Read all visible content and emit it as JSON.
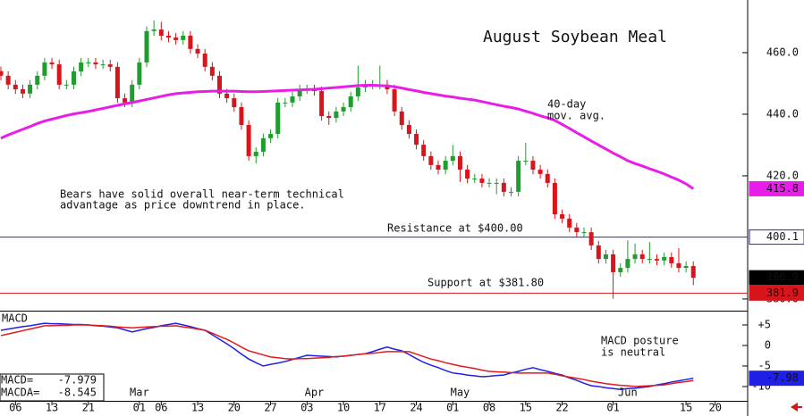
{
  "chart_data": [
    {
      "type": "candlestick",
      "title": "August Soybean Meal",
      "ylim": [
        376.5,
        477.1
      ],
      "yticks": [
        {
          "value": 460,
          "label": "460.0"
        },
        {
          "value": 440,
          "label": "440.0"
        },
        {
          "value": 420,
          "label": "420.0"
        },
        {
          "value": 380,
          "label": "380.0"
        }
      ],
      "up_color": "#1e9e2e",
      "down_color": "#d8151b",
      "last_price_color": "#000000",
      "open": [
        454.0,
        452.5,
        449.6,
        448.1,
        446.7,
        449.6,
        452.5,
        456.8,
        456.2,
        449.6,
        449.6,
        453.9,
        456.8,
        456.8,
        456.2,
        456.2,
        455.4,
        445.2,
        443.8,
        449.6,
        456.8,
        467.0,
        467.5,
        465.5,
        464.9,
        464.1,
        465.5,
        461.2,
        459.7,
        455.4,
        452.5,
        446.7,
        445.2,
        442.3,
        436.5,
        426.4,
        427.8,
        432.2,
        433.6,
        443.8,
        443.8,
        445.8,
        448.1,
        448.1,
        447.5,
        439.4,
        438.8,
        440.9,
        442.3,
        445.8,
        448.7,
        449.6,
        449.6,
        449.6,
        448.1,
        440.9,
        436.5,
        433.6,
        430.1,
        426.4,
        423.5,
        422.0,
        424.9,
        426.4,
        422.0,
        419.1,
        419.1,
        417.7,
        417.7,
        417.7,
        414.8,
        414.8,
        424.9,
        424.9,
        422.0,
        420.6,
        417.7,
        407.5,
        406.1,
        403.2,
        401.7,
        401.7,
        397.4,
        393.0,
        394.5,
        388.7,
        390.1,
        393.0,
        394.5,
        393.0,
        393.0,
        392.5,
        393.6,
        391.6,
        390.1,
        390.7,
        null,
        null,
        null,
        null,
        null
      ],
      "high": [
        455.5,
        454.0,
        451.1,
        449.6,
        451.1,
        454.0,
        458.3,
        458.3,
        457.7,
        451.1,
        455.4,
        458.3,
        458.3,
        458.3,
        457.7,
        457.7,
        456.9,
        446.7,
        451.1,
        458.3,
        468.5,
        470.5,
        470.0,
        467.0,
        466.4,
        467.0,
        467.0,
        462.7,
        461.2,
        456.9,
        454.0,
        448.2,
        446.7,
        443.8,
        438.0,
        429.3,
        433.7,
        435.1,
        445.3,
        445.3,
        447.3,
        449.6,
        449.6,
        449.6,
        449.0,
        440.9,
        442.4,
        443.8,
        447.3,
        455.8,
        451.1,
        451.1,
        455.8,
        451.1,
        449.6,
        442.4,
        438.0,
        435.1,
        431.6,
        427.9,
        425.0,
        426.4,
        430.0,
        427.9,
        423.5,
        420.6,
        420.6,
        419.2,
        419.2,
        419.2,
        416.3,
        426.4,
        430.7,
        426.4,
        423.5,
        422.1,
        419.2,
        409.0,
        407.6,
        404.7,
        403.2,
        403.2,
        398.9,
        396.0,
        396.0,
        391.6,
        399.1,
        398.0,
        396.0,
        398.5,
        394.5,
        395.1,
        395.1,
        396.5,
        392.2,
        392.2,
        null,
        null,
        null,
        null,
        null
      ],
      "low": [
        451.0,
        448.1,
        446.6,
        445.2,
        445.2,
        448.1,
        451.0,
        454.7,
        448.1,
        448.1,
        448.1,
        452.4,
        455.3,
        454.7,
        454.7,
        453.9,
        443.7,
        442.3,
        442.3,
        448.1,
        455.3,
        465.5,
        464.0,
        463.4,
        462.6,
        462.6,
        459.7,
        458.2,
        453.9,
        451.0,
        445.2,
        443.7,
        440.8,
        435.0,
        424.9,
        424.0,
        426.3,
        430.7,
        432.1,
        442.3,
        442.3,
        444.3,
        446.6,
        446.0,
        437.9,
        436.5,
        437.3,
        439.4,
        440.8,
        444.3,
        447.2,
        448.1,
        448.1,
        446.6,
        439.4,
        435.0,
        432.1,
        428.6,
        424.9,
        422.0,
        420.5,
        420.5,
        423.4,
        418.0,
        417.6,
        417.6,
        416.2,
        416.2,
        414.0,
        413.3,
        413.3,
        413.3,
        423.4,
        420.5,
        419.1,
        416.2,
        406.0,
        404.6,
        401.7,
        400.2,
        400.2,
        395.9,
        391.5,
        391.5,
        380.1,
        387.2,
        388.6,
        391.5,
        391.5,
        391.5,
        391.0,
        391.0,
        390.1,
        388.6,
        388.6,
        384.5,
        null,
        null,
        null,
        null,
        null
      ],
      "close": [
        452.5,
        449.6,
        448.1,
        446.7,
        449.6,
        452.5,
        456.8,
        456.2,
        449.6,
        449.6,
        453.9,
        456.8,
        456.8,
        456.2,
        456.2,
        455.4,
        445.2,
        443.8,
        449.6,
        456.8,
        467.0,
        467.5,
        465.5,
        464.9,
        464.1,
        465.5,
        461.2,
        459.7,
        455.4,
        452.5,
        446.7,
        445.2,
        442.3,
        436.5,
        426.4,
        427.8,
        432.2,
        433.6,
        443.8,
        443.8,
        445.8,
        448.1,
        448.1,
        447.5,
        439.4,
        438.8,
        440.9,
        442.3,
        445.8,
        448.7,
        449.6,
        449.6,
        449.6,
        448.1,
        440.9,
        436.5,
        433.6,
        430.1,
        426.4,
        423.5,
        422.0,
        424.9,
        426.4,
        422.0,
        419.1,
        419.1,
        417.7,
        417.7,
        417.7,
        414.8,
        414.8,
        424.9,
        424.9,
        422.0,
        420.6,
        417.7,
        407.5,
        406.1,
        403.2,
        401.7,
        401.7,
        397.4,
        393.0,
        394.5,
        388.7,
        390.1,
        393.0,
        394.5,
        393.0,
        393.0,
        392.5,
        393.6,
        391.6,
        390.1,
        390.7,
        386.9,
        null,
        null,
        null,
        null,
        null
      ],
      "series": [
        {
          "name": [
            "40-day",
            "mov. avg."
          ],
          "color": "#e81ee8",
          "values": [
            432.2,
            433.3,
            434.2,
            435.1,
            436.0,
            437.0,
            437.8,
            438.4,
            439.0,
            439.6,
            440.1,
            440.5,
            440.9,
            441.4,
            441.9,
            442.4,
            442.9,
            443.4,
            443.8,
            444.3,
            444.8,
            445.3,
            445.8,
            446.3,
            446.7,
            446.9,
            447.1,
            447.3,
            447.4,
            447.5,
            447.5,
            447.5,
            447.5,
            447.4,
            447.3,
            447.3,
            447.4,
            447.5,
            447.6,
            447.7,
            447.8,
            447.9,
            448.0,
            448.1,
            448.3,
            448.5,
            448.7,
            448.9,
            449.1,
            449.3,
            449.4,
            449.4,
            449.3,
            449.2,
            448.9,
            448.5,
            448.0,
            447.6,
            447.1,
            446.7,
            446.3,
            445.9,
            445.6,
            445.2,
            444.9,
            444.6,
            444.1,
            443.6,
            443.1,
            442.6,
            442.2,
            441.7,
            441.0,
            440.3,
            439.5,
            438.8,
            438.0,
            436.7,
            435.4,
            434.0,
            432.7,
            431.3,
            430.0,
            428.7,
            427.4,
            426.2,
            424.9,
            424.0,
            423.2,
            422.3,
            421.5,
            420.6,
            419.6,
            418.6,
            417.4,
            415.8,
            null,
            null,
            null,
            null,
            null
          ]
        }
      ],
      "reference_lines": [
        {
          "value": 400.1,
          "color": "#2323c8",
          "label": "Resistance at $400.00"
        },
        {
          "value": 381.9,
          "color": "#d8151b",
          "label": "Support at $381.80"
        }
      ],
      "annotations": [
        {
          "lines": [
            "Bears have solid overall near-term technical",
            "advantage as price downtrend in place."
          ]
        }
      ]
    },
    {
      "type": "line",
      "title": "MACD",
      "categories": [
        null,
        null,
        "06",
        null,
        null,
        null,
        null,
        "13",
        null,
        null,
        null,
        null,
        "21",
        null,
        null,
        null,
        null,
        null,
        null,
        "01",
        null,
        null,
        "06",
        null,
        null,
        null,
        null,
        "13",
        null,
        null,
        null,
        null,
        "20",
        null,
        null,
        null,
        null,
        "27",
        null,
        null,
        null,
        null,
        "03",
        null,
        null,
        null,
        null,
        "10",
        null,
        null,
        null,
        null,
        "17",
        null,
        null,
        null,
        null,
        "24",
        null,
        null,
        null,
        null,
        "01",
        null,
        null,
        null,
        null,
        "08",
        null,
        null,
        null,
        null,
        "15",
        null,
        null,
        null,
        null,
        "22",
        null,
        null,
        null,
        null,
        null,
        null,
        "01",
        null,
        null,
        null,
        null,
        null,
        null,
        null,
        null,
        null,
        "15",
        null,
        null,
        null,
        "20",
        null,
        null
      ],
      "months": [
        null,
        null,
        null,
        null,
        null,
        null,
        null,
        null,
        null,
        null,
        null,
        null,
        null,
        null,
        null,
        null,
        null,
        null,
        null,
        "Mar",
        null,
        null,
        null,
        null,
        null,
        null,
        null,
        null,
        null,
        null,
        null,
        null,
        null,
        null,
        null,
        null,
        null,
        null,
        null,
        null,
        null,
        null,
        null,
        "Apr",
        null,
        null,
        null,
        null,
        null,
        null,
        null,
        null,
        null,
        null,
        null,
        null,
        null,
        null,
        null,
        null,
        null,
        null,
        null,
        "May",
        null,
        null,
        null,
        null,
        null,
        null,
        null,
        null,
        null,
        null,
        null,
        null,
        null,
        null,
        null,
        null,
        null,
        null,
        null,
        null,
        null,
        null,
        "Jun",
        null,
        null,
        null,
        null,
        null,
        null,
        null,
        null,
        null,
        null,
        null,
        null,
        null,
        null
      ],
      "ylim": [
        -13.26,
        8.04
      ],
      "yticks": [
        {
          "value": 5,
          "label": "+5"
        },
        0,
        -5,
        -10
      ],
      "series": [
        {
          "name": "MACD=",
          "color": "#1f1fe6",
          "end_label": "-7.98",
          "values": [
            3.7,
            4.0,
            4.3,
            4.6,
            4.8,
            5.1,
            5.4,
            5.3,
            5.3,
            5.2,
            5.1,
            5.1,
            5.0,
            4.8,
            4.7,
            4.5,
            4.3,
            3.8,
            3.3,
            3.7,
            4.1,
            4.4,
            4.8,
            5.1,
            5.4,
            5.0,
            4.6,
            4.1,
            3.7,
            2.6,
            1.5,
            0.4,
            -0.8,
            -2.1,
            -3.3,
            -4.2,
            -5.0,
            -4.6,
            -4.3,
            -3.9,
            -3.4,
            -2.9,
            -2.4,
            -2.5,
            -2.6,
            -2.7,
            -2.8,
            -2.6,
            -2.4,
            -2.2,
            -2.0,
            -1.5,
            -0.9,
            -0.4,
            -0.9,
            -1.3,
            -2.2,
            -3.2,
            -4.1,
            -4.8,
            -5.4,
            -6.1,
            -6.7,
            -6.9,
            -7.2,
            -7.4,
            -7.6,
            -7.5,
            -7.3,
            -7.2,
            -6.7,
            -6.3,
            -5.8,
            -5.4,
            -5.9,
            -6.3,
            -6.8,
            -7.2,
            -7.9,
            -8.5,
            -9.2,
            -9.8,
            -10.0,
            -10.3,
            -10.5,
            -10.7,
            -10.5,
            -10.4,
            -10.2,
            -10.0,
            -9.6,
            -9.3,
            -8.9,
            -8.6,
            -8.3,
            -7.979,
            null,
            null,
            null,
            null,
            null
          ]
        },
        {
          "name": "MACDA=",
          "color": "#e01b1b",
          "values": [
            2.4,
            2.8,
            3.2,
            3.6,
            4.0,
            4.4,
            4.8,
            4.8,
            4.9,
            4.9,
            5.0,
            5.0,
            5.0,
            4.9,
            4.8,
            4.7,
            4.5,
            4.4,
            4.3,
            4.4,
            4.5,
            4.6,
            4.7,
            4.7,
            4.8,
            4.5,
            4.3,
            4.0,
            3.7,
            3.0,
            2.2,
            1.5,
            0.6,
            -0.4,
            -1.3,
            -1.8,
            -2.3,
            -2.8,
            -3.0,
            -3.2,
            -3.3,
            -3.2,
            -3.2,
            -3.1,
            -3.0,
            -2.9,
            -2.7,
            -2.6,
            -2.4,
            -2.2,
            -2.0,
            -1.9,
            -1.7,
            -1.5,
            -1.5,
            -1.5,
            -1.5,
            -2.1,
            -2.7,
            -3.3,
            -3.7,
            -4.2,
            -4.6,
            -5.0,
            -5.3,
            -5.6,
            -6.0,
            -6.3,
            -6.4,
            -6.5,
            -6.6,
            -6.7,
            -6.7,
            -6.7,
            -6.7,
            -6.7,
            -7.0,
            -7.4,
            -7.7,
            -8.0,
            -8.3,
            -8.7,
            -9.0,
            -9.3,
            -9.5,
            -9.7,
            -9.8,
            -10.0,
            -9.9,
            -9.8,
            -9.7,
            -9.6,
            -9.3,
            -9.0,
            -8.8,
            -8.545,
            null,
            null,
            null,
            null,
            null
          ]
        }
      ],
      "annotations": [
        {
          "lines": [
            "MACD posture",
            "is neutral"
          ]
        }
      ]
    }
  ]
}
